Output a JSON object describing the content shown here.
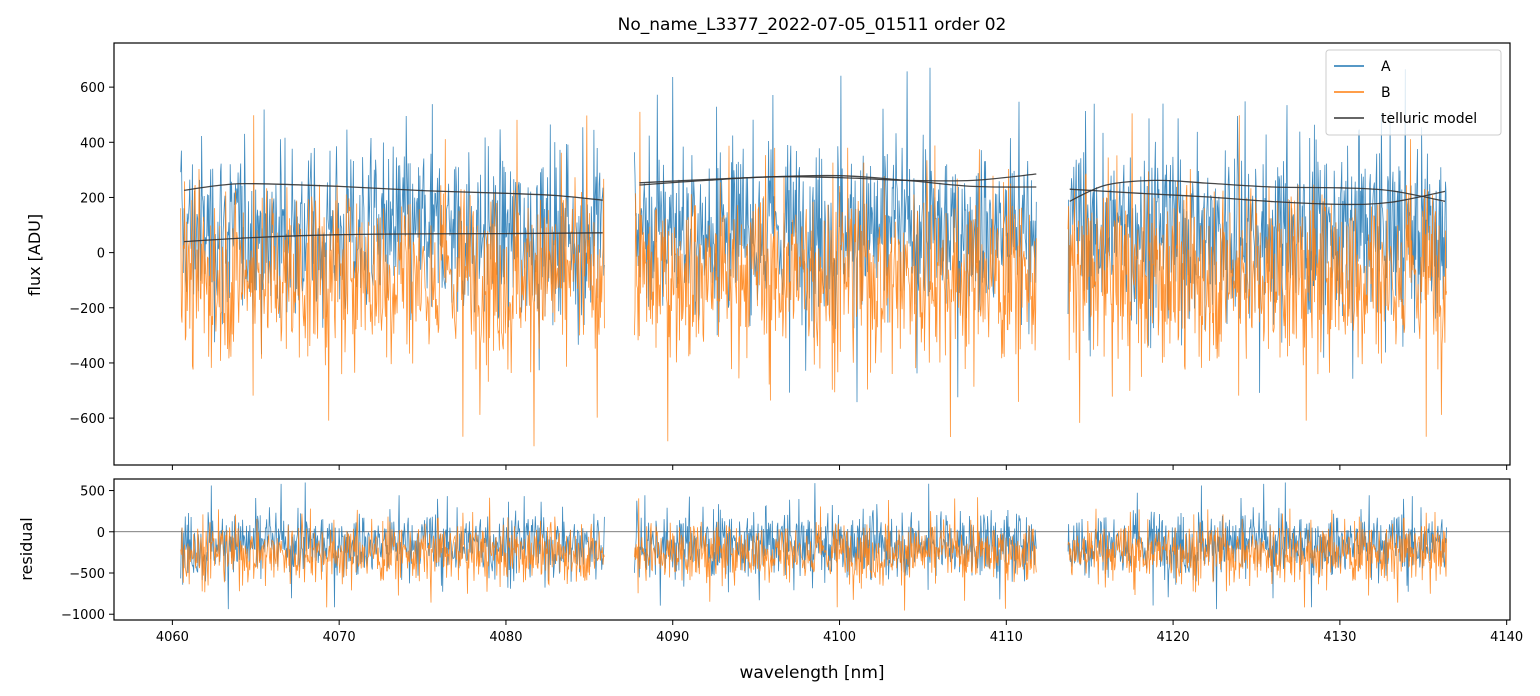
{
  "chart_data": [
    {
      "panel": "top",
      "type": "line",
      "title": "No_name_L3377_2022-07-05_01511  order 02",
      "xlabel": "",
      "ylabel": "flux [ADU]",
      "xlim": [
        4056.5,
        4140.2
      ],
      "ylim": [
        -770,
        760
      ],
      "xticks": [
        4060,
        4070,
        4080,
        4090,
        4100,
        4110,
        4120,
        4130,
        4140
      ],
      "yticks": [
        -600,
        -400,
        -200,
        0,
        200,
        400,
        600
      ],
      "ytick_labels": [
        "−600",
        "−400",
        "−200",
        "0",
        "200",
        "400",
        "600"
      ],
      "grid": false,
      "legend": {
        "position": "top-right",
        "entries": [
          "A",
          "B",
          "telluric model"
        ]
      },
      "segments": [
        [
          4060.5,
          4085.9
        ],
        [
          4087.7,
          4111.8
        ],
        [
          4113.7,
          4136.4
        ]
      ],
      "series": [
        {
          "name": "A",
          "color": "#1f77b4",
          "kind": "noisy-spectrum",
          "center": 80,
          "noise_amplitude": 300
        },
        {
          "name": "B",
          "color": "#ff7f0e",
          "kind": "noisy-spectrum",
          "center": -80,
          "noise_amplitude": 300
        },
        {
          "name": "telluric model",
          "color": "#333333",
          "kind": "smooth-curves",
          "curves": [
            {
              "x": [
                4060.7,
                4063,
                4065,
                4070,
                4075,
                4080,
                4083,
                4085.8
              ],
              "y": [
                226,
                245,
                250,
                240,
                225,
                215,
                207,
                190
              ]
            },
            {
              "x": [
                4060.7,
                4065,
                4070,
                4075,
                4080,
                4085.8
              ],
              "y": [
                40,
                55,
                65,
                68,
                69,
                72
              ]
            },
            {
              "x": [
                4088,
                4092,
                4096,
                4100,
                4104,
                4108,
                4111.8
              ],
              "y": [
                245,
                262,
                275,
                272,
                262,
                262,
                285
              ]
            },
            {
              "x": [
                4088,
                4092,
                4096,
                4100,
                4104,
                4108,
                4111.8
              ],
              "y": [
                253,
                265,
                275,
                279,
                262,
                240,
                238
              ]
            },
            {
              "x": [
                4113.8,
                4116,
                4119,
                4122,
                4126,
                4130,
                4133,
                4136.3
              ],
              "y": [
                186,
                245,
                262,
                252,
                238,
                235,
                225,
                186
              ]
            },
            {
              "x": [
                4113.8,
                4118,
                4122,
                4126,
                4130,
                4133,
                4136.3
              ],
              "y": [
                230,
                215,
                202,
                185,
                175,
                182,
                222
              ]
            }
          ]
        }
      ]
    },
    {
      "panel": "bottom",
      "type": "line",
      "title": "",
      "xlabel": "wavelength [nm]",
      "ylabel": "residual",
      "xlim": [
        4056.5,
        4140.2
      ],
      "ylim": [
        -1070,
        640
      ],
      "xticks": [
        4060,
        4070,
        4080,
        4090,
        4100,
        4110,
        4120,
        4130,
        4140
      ],
      "xtick_labels": [
        "4060",
        "4070",
        "4080",
        "4090",
        "4100",
        "4110",
        "4120",
        "4130",
        "4140"
      ],
      "yticks": [
        -1000,
        -500,
        0,
        500
      ],
      "ytick_labels": [
        "−1000",
        "−500",
        "0",
        "500"
      ],
      "grid": false,
      "zero_line": true,
      "segments": [
        [
          4060.5,
          4085.9
        ],
        [
          4087.7,
          4111.8
        ],
        [
          4113.7,
          4136.4
        ]
      ],
      "series": [
        {
          "name": "A",
          "color": "#1f77b4",
          "kind": "noisy-spectrum",
          "center": -150,
          "noise_amplitude": 380
        },
        {
          "name": "B",
          "color": "#ff7f0e",
          "kind": "noisy-spectrum",
          "center": -250,
          "noise_amplitude": 340
        }
      ]
    }
  ]
}
